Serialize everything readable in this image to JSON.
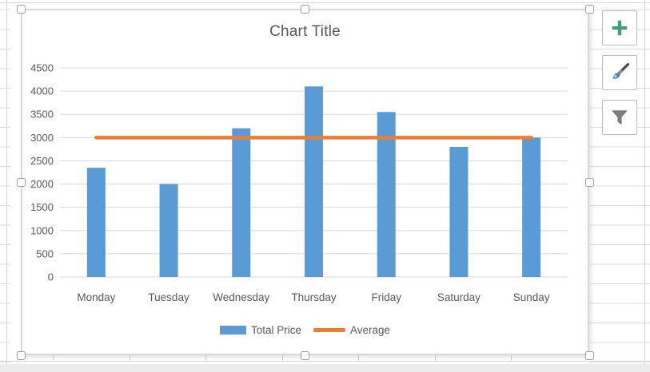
{
  "chart_data": {
    "type": "bar",
    "title": "Chart Title",
    "categories": [
      "Monday",
      "Tuesday",
      "Wednesday",
      "Thursday",
      "Friday",
      "Saturday",
      "Sunday"
    ],
    "series": [
      {
        "name": "Total Price",
        "type": "bar",
        "color": "#5B9BD5",
        "values": [
          2350,
          2000,
          3200,
          4100,
          3550,
          2800,
          3000
        ]
      },
      {
        "name": "Average",
        "type": "line",
        "color": "#ED7D31",
        "values": [
          3000,
          3000,
          3000,
          3000,
          3000,
          3000,
          3000
        ]
      }
    ],
    "xlabel": "",
    "ylabel": "",
    "ylim": [
      0,
      4500
    ],
    "yticks": [
      0,
      500,
      1000,
      1500,
      2000,
      2500,
      3000,
      3500,
      4000,
      4500
    ],
    "grid": true,
    "legend_position": "bottom",
    "colors": {
      "axis_text": "#595959",
      "gridline": "#d9d9d9",
      "title_text": "#595959"
    }
  },
  "side_buttons": [
    {
      "id": "chart-elements-button",
      "icon": "plus-icon",
      "color": "#419E74"
    },
    {
      "id": "chart-styles-button",
      "icon": "paintbrush-icon",
      "color": "#3D85C6"
    },
    {
      "id": "chart-filters-button",
      "icon": "funnel-icon",
      "color": "#7F7F7F"
    }
  ]
}
